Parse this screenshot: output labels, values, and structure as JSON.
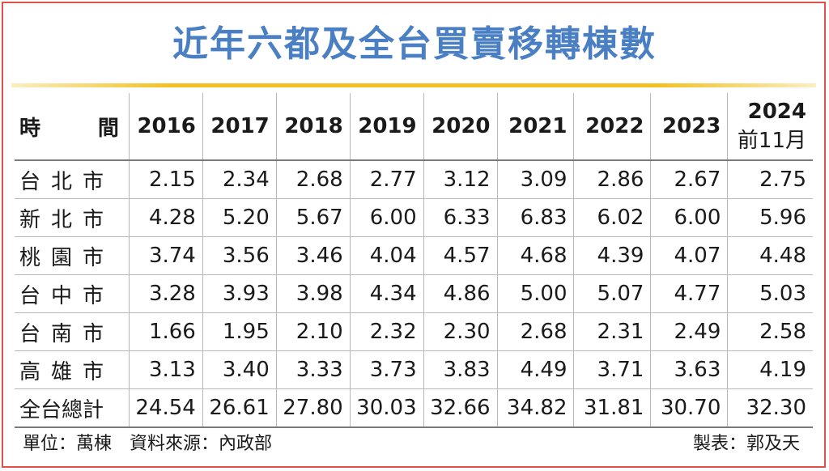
{
  "title": "近年六都及全台買賣移轉棟數",
  "header": {
    "time_a": "時",
    "time_b": "間",
    "years": [
      "2016",
      "2017",
      "2018",
      "2019",
      "2020",
      "2021",
      "2022",
      "2023"
    ],
    "last_year": "2024",
    "last_year_note": "前11月"
  },
  "rows": [
    {
      "label": "台北市",
      "values": [
        "2.15",
        "2.34",
        "2.68",
        "2.77",
        "3.12",
        "3.09",
        "2.86",
        "2.67",
        "2.75"
      ]
    },
    {
      "label": "新北市",
      "values": [
        "4.28",
        "5.20",
        "5.67",
        "6.00",
        "6.33",
        "6.83",
        "6.02",
        "6.00",
        "5.96"
      ]
    },
    {
      "label": "桃園市",
      "values": [
        "3.74",
        "3.56",
        "3.46",
        "4.04",
        "4.57",
        "4.68",
        "4.39",
        "4.07",
        "4.48"
      ]
    },
    {
      "label": "台中市",
      "values": [
        "3.28",
        "3.93",
        "3.98",
        "4.34",
        "4.86",
        "5.00",
        "5.07",
        "4.77",
        "5.03"
      ]
    },
    {
      "label": "台南市",
      "values": [
        "1.66",
        "1.95",
        "2.10",
        "2.32",
        "2.30",
        "2.68",
        "2.31",
        "2.49",
        "2.58"
      ]
    },
    {
      "label": "高雄市",
      "values": [
        "3.13",
        "3.40",
        "3.33",
        "3.73",
        "3.83",
        "4.49",
        "3.71",
        "3.63",
        "4.19"
      ]
    },
    {
      "label": "全台總計",
      "values": [
        "24.54",
        "26.61",
        "27.80",
        "30.03",
        "32.66",
        "34.82",
        "31.81",
        "30.70",
        "32.30"
      ]
    }
  ],
  "footer": {
    "left": "單位：萬棟　資料來源：內政部",
    "right": "製表：郭及天"
  },
  "colors": {
    "title": "#4a7fc4",
    "gold_rule": "#f2c020",
    "frame": "#e2504a"
  },
  "chart_data": {
    "type": "table",
    "title": "近年六都及全台買賣移轉棟數",
    "columns": [
      "2016",
      "2017",
      "2018",
      "2019",
      "2020",
      "2021",
      "2022",
      "2023",
      "2024 前11月"
    ],
    "series": [
      {
        "name": "台北市",
        "values": [
          2.15,
          2.34,
          2.68,
          2.77,
          3.12,
          3.09,
          2.86,
          2.67,
          2.75
        ]
      },
      {
        "name": "新北市",
        "values": [
          4.28,
          5.2,
          5.67,
          6.0,
          6.33,
          6.83,
          6.02,
          6.0,
          5.96
        ]
      },
      {
        "name": "桃園市",
        "values": [
          3.74,
          3.56,
          3.46,
          4.04,
          4.57,
          4.68,
          4.39,
          4.07,
          4.48
        ]
      },
      {
        "name": "台中市",
        "values": [
          3.28,
          3.93,
          3.98,
          4.34,
          4.86,
          5.0,
          5.07,
          4.77,
          5.03
        ]
      },
      {
        "name": "台南市",
        "values": [
          1.66,
          1.95,
          2.1,
          2.32,
          2.3,
          2.68,
          2.31,
          2.49,
          2.58
        ]
      },
      {
        "name": "高雄市",
        "values": [
          3.13,
          3.4,
          3.33,
          3.73,
          3.83,
          4.49,
          3.71,
          3.63,
          4.19
        ]
      },
      {
        "name": "全台總計",
        "values": [
          24.54,
          26.61,
          27.8,
          30.03,
          32.66,
          34.82,
          31.81,
          30.7,
          32.3
        ]
      }
    ],
    "unit": "萬棟",
    "source": "內政部"
  }
}
